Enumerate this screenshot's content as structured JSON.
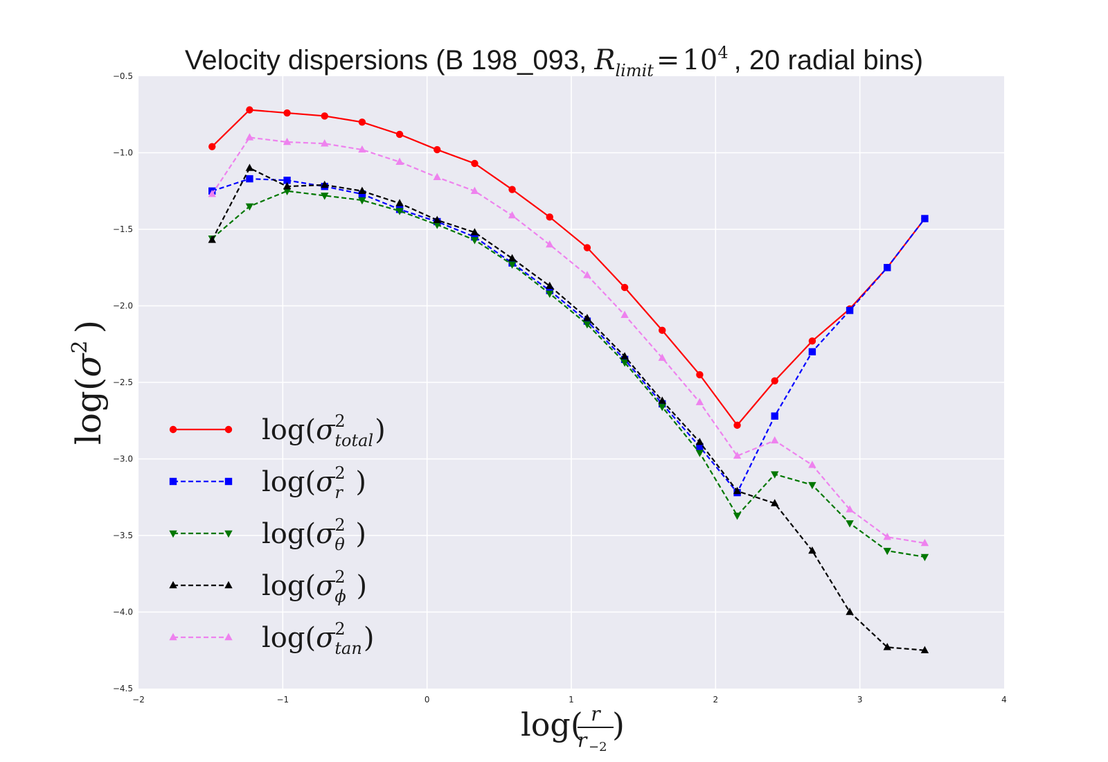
{
  "chart_data": {
    "type": "line",
    "title": {
      "prefix": "Velocity dispersions (B 198_093, ",
      "var": "R",
      "var_sub": "limit",
      "equals": "=",
      "base": "10",
      "exp": "4",
      "suffix": ", 20 radial bins)"
    },
    "xlabel": {
      "func": "log(",
      "num": "r",
      "den": "r",
      "den_sub": "−2",
      "close": ")"
    },
    "ylabel": {
      "func": "log(",
      "sym": "σ",
      "sup": "2",
      "close": ")"
    },
    "xlim": [
      -2,
      4
    ],
    "ylim": [
      -4.5,
      -0.5
    ],
    "xticks": [
      -2,
      -1,
      0,
      1,
      2,
      3,
      4
    ],
    "xtick_labels": [
      "−2",
      "−1",
      "0",
      "1",
      "2",
      "3",
      "4"
    ],
    "yticks": [
      -4.5,
      -4.0,
      -3.5,
      -3.0,
      -2.5,
      -2.0,
      -1.5,
      -1.0,
      -0.5
    ],
    "ytick_labels": [
      "−4.5",
      "−4.0",
      "−3.5",
      "−3.0",
      "−2.5",
      "−2.0",
      "−1.5",
      "−1.0",
      "−0.5"
    ],
    "grid": true,
    "background": "#eaeaf2",
    "legend_position": "lower-left",
    "x": [
      -1.49,
      -1.23,
      -0.97,
      -0.71,
      -0.45,
      -0.19,
      0.07,
      0.33,
      0.59,
      0.85,
      1.11,
      1.37,
      1.63,
      1.89,
      2.15,
      2.41,
      2.67,
      2.93,
      3.19,
      3.45
    ],
    "series": [
      {
        "key": "total",
        "legend": {
          "func": "log(",
          "sym": "σ",
          "sup": "2",
          "sub": "total",
          "close": ")"
        },
        "color": "#ff0000",
        "dash": "solid",
        "marker": "circle",
        "values": [
          -0.96,
          -0.72,
          -0.74,
          -0.76,
          -0.8,
          -0.88,
          -0.98,
          -1.07,
          -1.24,
          -1.42,
          -1.62,
          -1.88,
          -2.16,
          -2.45,
          -2.78,
          -2.49,
          -2.23,
          -2.02,
          -1.75,
          -1.43
        ]
      },
      {
        "key": "r",
        "legend": {
          "func": "log(",
          "sym": "σ",
          "sup": "2",
          "sub": "r",
          "close": " )"
        },
        "color": "#0000ff",
        "dash": "dashed",
        "marker": "square",
        "values": [
          -1.25,
          -1.17,
          -1.18,
          -1.22,
          -1.27,
          -1.37,
          -1.45,
          -1.55,
          -1.72,
          -1.9,
          -2.1,
          -2.35,
          -2.64,
          -2.92,
          -3.22,
          -2.72,
          -2.3,
          -2.03,
          -1.75,
          -1.43
        ]
      },
      {
        "key": "theta",
        "legend": {
          "func": "log(",
          "sym": "σ",
          "sup": "2",
          "sub": "θ",
          "close": " )"
        },
        "color": "#007700",
        "dash": "dashed",
        "marker": "triangle-down",
        "values": [
          -1.56,
          -1.35,
          -1.25,
          -1.28,
          -1.31,
          -1.38,
          -1.47,
          -1.57,
          -1.73,
          -1.92,
          -2.12,
          -2.37,
          -2.66,
          -2.96,
          -3.37,
          -3.1,
          -3.17,
          -3.42,
          -3.6,
          -3.64
        ]
      },
      {
        "key": "phi",
        "legend": {
          "func": "log(",
          "sym": "σ",
          "sup": "2",
          "sub": "ϕ",
          "close": " )"
        },
        "color": "#000000",
        "dash": "dashed",
        "marker": "triangle-up",
        "values": [
          -1.57,
          -1.1,
          -1.22,
          -1.21,
          -1.25,
          -1.33,
          -1.44,
          -1.52,
          -1.69,
          -1.87,
          -2.08,
          -2.33,
          -2.62,
          -2.89,
          -3.21,
          -3.29,
          -3.6,
          -4.0,
          -4.23,
          -4.25
        ]
      },
      {
        "key": "tan",
        "legend": {
          "func": "log(",
          "sym": "σ",
          "sup": "2",
          "sub": "tan",
          "close": ")"
        },
        "color": "#ee82ee",
        "dash": "dashed",
        "marker": "triangle-up",
        "values": [
          -1.27,
          -0.9,
          -0.93,
          -0.94,
          -0.98,
          -1.06,
          -1.16,
          -1.25,
          -1.41,
          -1.6,
          -1.8,
          -2.06,
          -2.34,
          -2.63,
          -2.98,
          -2.88,
          -3.04,
          -3.33,
          -3.51,
          -3.55
        ]
      }
    ]
  }
}
